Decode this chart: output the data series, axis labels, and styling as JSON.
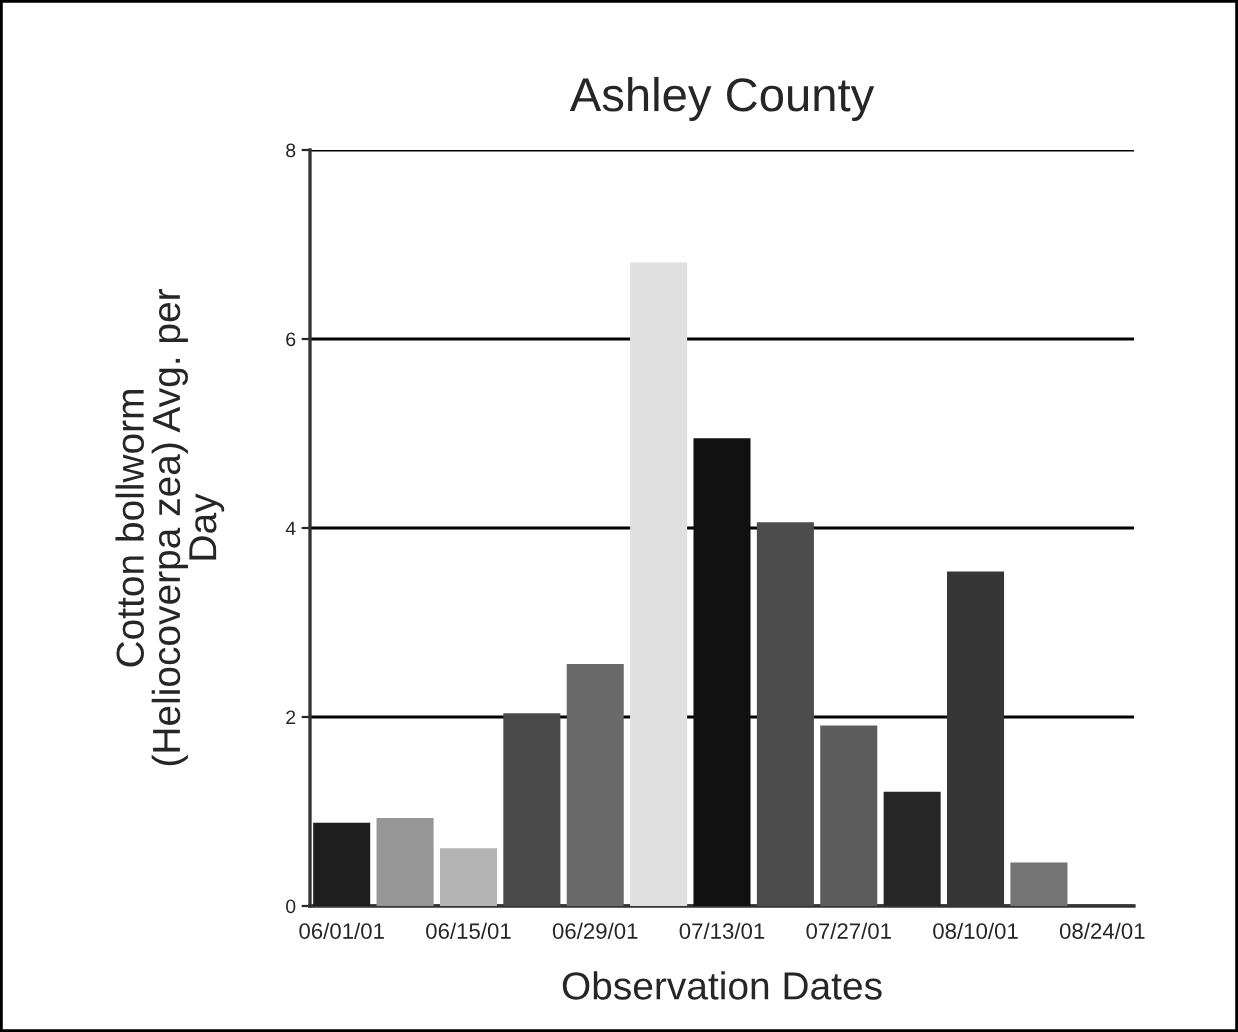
{
  "chart_data": {
    "type": "bar",
    "title": "Ashley County",
    "xlabel": "Observation Dates",
    "ylabel": "Cotton bollworm\n(Heliocoverpa zea) Avg. per\nDay",
    "categories": [
      "06/01/01",
      null,
      "06/15/01",
      null,
      "06/29/01",
      null,
      "07/13/01",
      null,
      "07/27/01",
      null,
      "08/10/01",
      null,
      "08/24/01"
    ],
    "values": [
      0.88,
      0.93,
      0.61,
      2.04,
      2.56,
      6.81,
      4.95,
      4.06,
      1.91,
      1.21,
      3.54,
      0.46,
      null
    ],
    "colors": [
      "#1e1e1e",
      "#969696",
      "#b4b4b4",
      "#4a4a4a",
      "#6a6a6a",
      "#e0e0e0",
      "#111111",
      "#4c4c4c",
      "#5c5c5c",
      "#262626",
      "#363636",
      "#747474",
      "#000000"
    ],
    "ylim": [
      0,
      8
    ],
    "yticks": [
      0,
      2,
      4,
      6,
      8
    ],
    "grid": "y"
  }
}
